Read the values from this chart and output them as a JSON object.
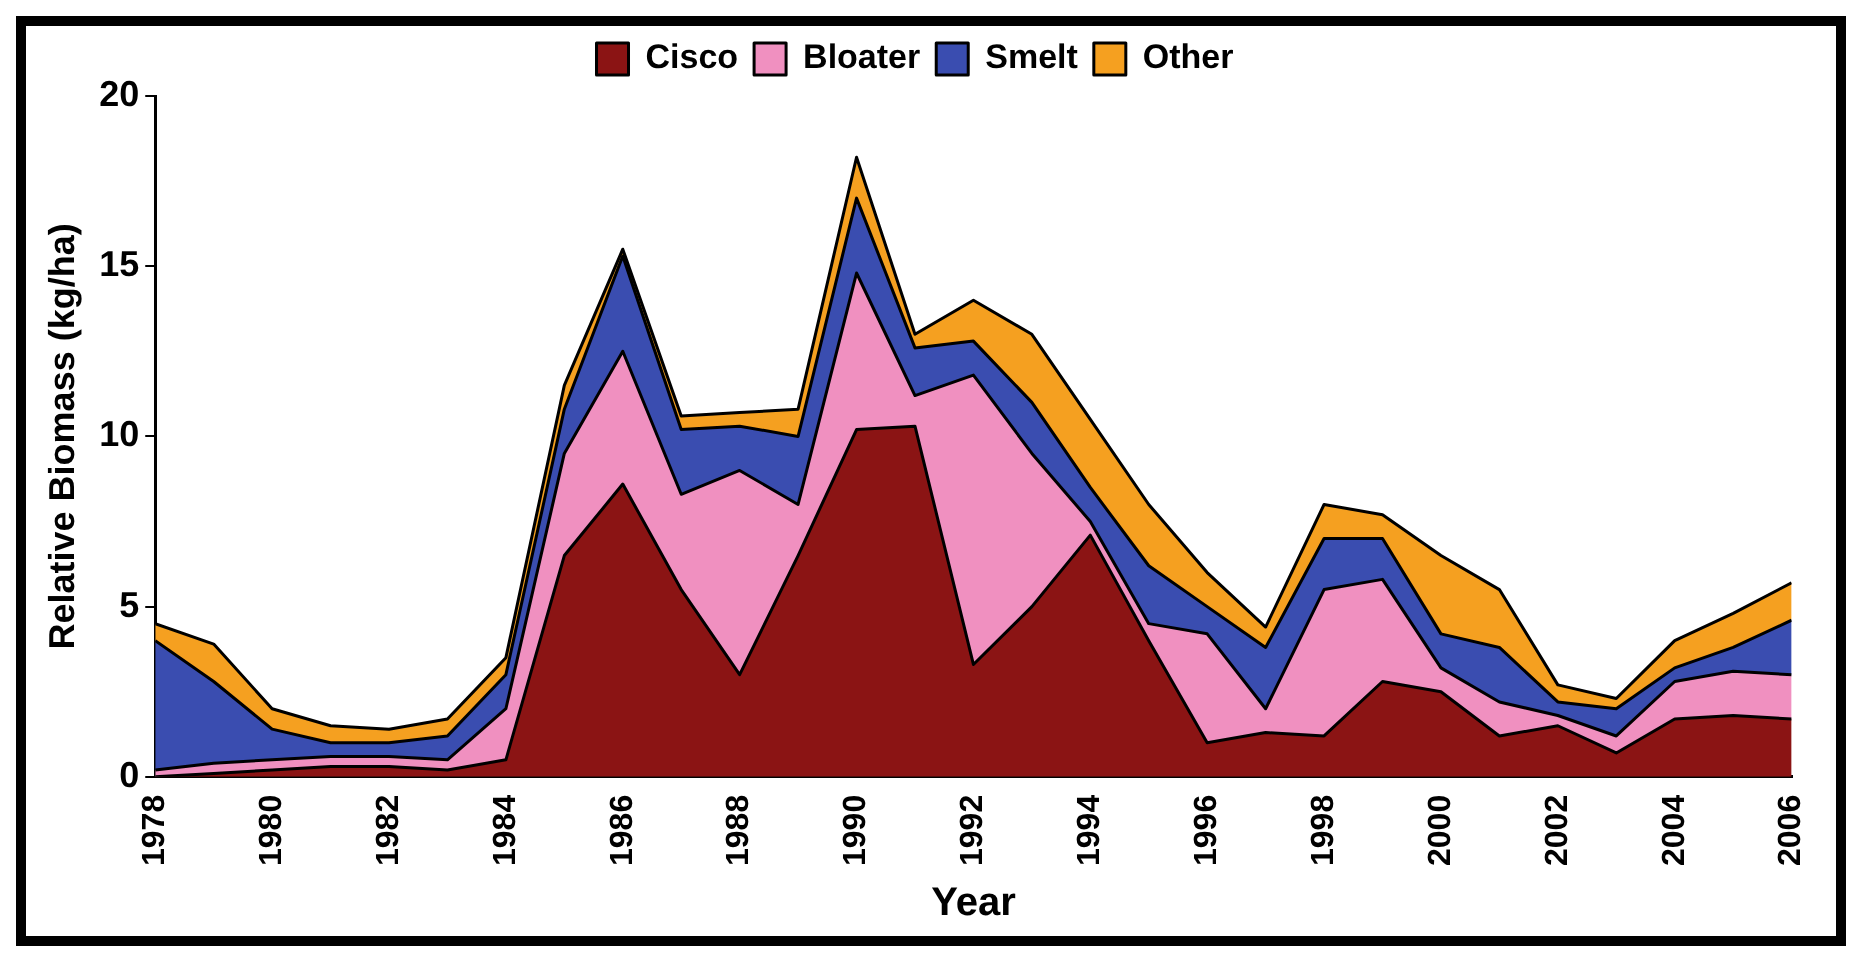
{
  "chart_data": {
    "type": "area",
    "stacked": true,
    "xlabel": "Year",
    "ylabel": "Relative Biomass (kg/ha)",
    "x": [
      1978,
      1979,
      1980,
      1981,
      1982,
      1983,
      1984,
      1985,
      1986,
      1987,
      1988,
      1989,
      1990,
      1991,
      1992,
      1993,
      1994,
      1995,
      1996,
      1997,
      1998,
      1999,
      2000,
      2001,
      2002,
      2003,
      2004,
      2005,
      2006
    ],
    "series": [
      {
        "name": "Cisco",
        "color": "#8b1414",
        "values": [
          0,
          0.1,
          0.2,
          0.3,
          0.3,
          0.2,
          0.5,
          6.5,
          8.6,
          5.5,
          3.0,
          6.5,
          10.2,
          10.3,
          3.3,
          5.0,
          7.1,
          4.0,
          1.0,
          1.3,
          1.2,
          2.8,
          2.5,
          1.2,
          1.5,
          0.7,
          1.7,
          1.8,
          1.7
        ]
      },
      {
        "name": "Bloater",
        "color": "#f090c0",
        "values": [
          0.2,
          0.3,
          0.3,
          0.3,
          0.3,
          0.3,
          1.5,
          3.0,
          3.9,
          2.8,
          6.0,
          1.5,
          4.6,
          0.9,
          8.5,
          4.5,
          0.4,
          0.5,
          3.2,
          0.7,
          4.3,
          3.0,
          0.7,
          1.0,
          0.3,
          0.5,
          1.1,
          1.3,
          1.3
        ]
      },
      {
        "name": "Smelt",
        "color": "#3a4db0",
        "values": [
          3.8,
          2.4,
          0.9,
          0.4,
          0.4,
          0.7,
          1.0,
          1.3,
          2.8,
          1.9,
          1.3,
          2.0,
          2.2,
          1.4,
          1.0,
          1.5,
          1.0,
          1.7,
          0.8,
          1.8,
          1.5,
          1.2,
          1.0,
          1.6,
          0.4,
          0.8,
          0.4,
          0.7,
          1.6
        ]
      },
      {
        "name": "Other",
        "color": "#f5a020",
        "values": [
          0.5,
          1.1,
          0.6,
          0.5,
          0.4,
          0.5,
          0.5,
          0.7,
          0.2,
          0.4,
          0.4,
          0.8,
          1.2,
          0.4,
          1.2,
          2.0,
          2.0,
          1.8,
          1.0,
          0.6,
          1.0,
          0.7,
          2.3,
          1.7,
          0.5,
          0.3,
          0.8,
          1.0,
          1.1
        ]
      }
    ],
    "xlim": [
      1978,
      2006
    ],
    "xticks": [
      1978,
      1980,
      1982,
      1984,
      1986,
      1988,
      1990,
      1992,
      1994,
      1996,
      1998,
      2000,
      2002,
      2004,
      2006
    ],
    "ylim": [
      0,
      20
    ],
    "yticks": [
      0,
      5,
      10,
      15,
      20
    ],
    "grid": false,
    "legend": "top"
  }
}
